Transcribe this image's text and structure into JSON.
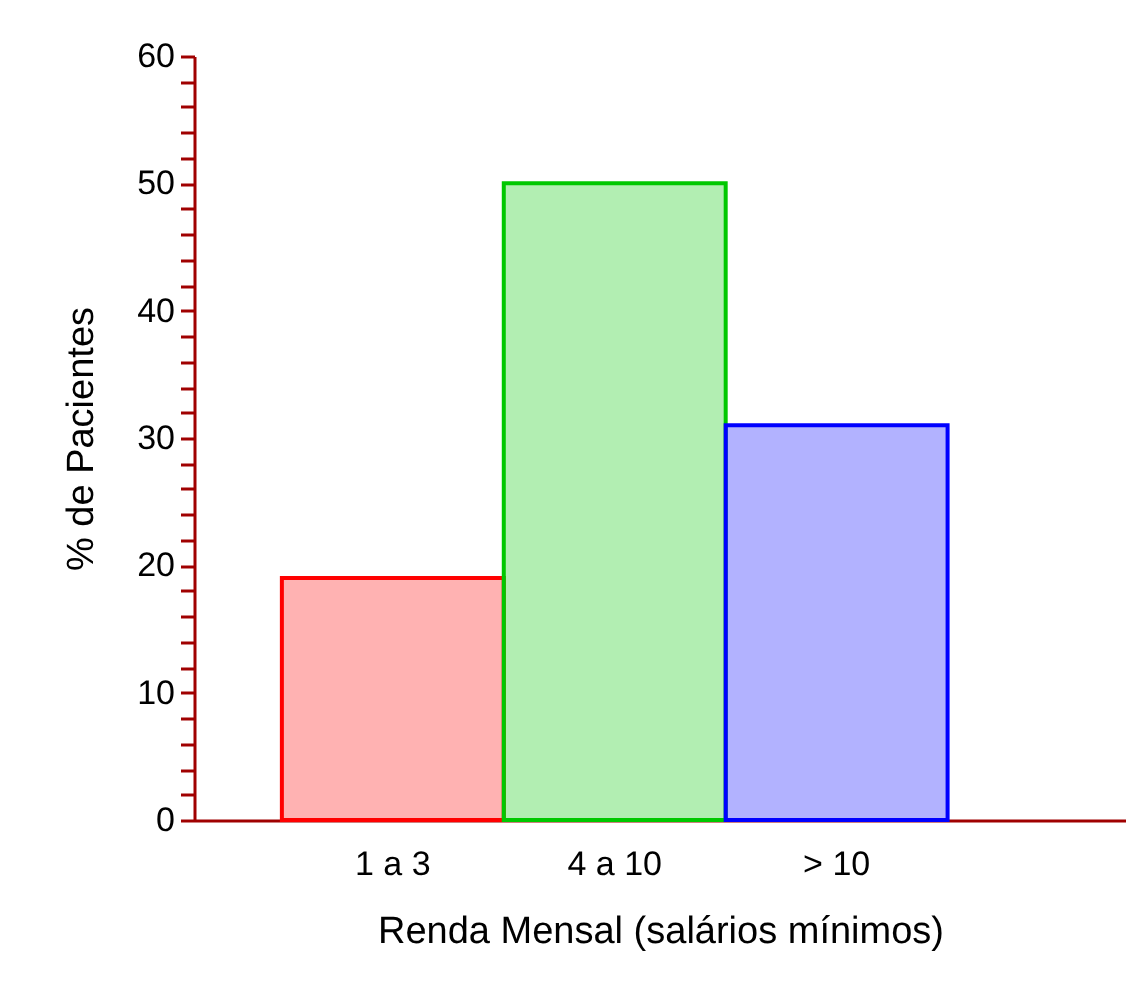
{
  "chart_data": {
    "type": "bar",
    "xlabel": "Renda Mensal (salários mínimos)",
    "ylabel": "% de Pacientes",
    "categories": [
      "1 a 3",
      "4 a 10",
      "> 10"
    ],
    "values": [
      19,
      50,
      31
    ],
    "colors": [
      "#ff0000",
      "#00c800",
      "#0000ff"
    ],
    "ylim": [
      0,
      60
    ],
    "yticks": [
      0,
      {
        "value": 2,
        "label": null
      },
      {
        "value": 4,
        "label": null
      },
      {
        "value": 6,
        "label": null
      },
      {
        "value": 8,
        "label": null
      },
      10,
      {
        "value": 12,
        "label": null
      },
      {
        "value": 14,
        "label": null
      },
      {
        "value": 16,
        "label": null
      },
      {
        "value": 18,
        "label": null
      },
      20,
      {
        "value": 22,
        "label": null
      },
      {
        "value": 24,
        "label": null
      },
      {
        "value": 26,
        "label": null
      },
      {
        "value": 28,
        "label": null
      },
      30,
      {
        "value": 32,
        "label": null
      },
      {
        "value": 34,
        "label": null
      },
      {
        "value": 36,
        "label": null
      },
      {
        "value": 38,
        "label": null
      },
      40,
      {
        "value": 42,
        "label": null
      },
      {
        "value": 44,
        "label": null
      },
      {
        "value": 46,
        "label": null
      },
      {
        "value": 48,
        "label": null
      },
      50,
      {
        "value": 52,
        "label": null
      },
      {
        "value": 54,
        "label": null
      },
      {
        "value": 56,
        "label": null
      },
      {
        "value": 58,
        "label": null
      },
      60
    ]
  }
}
